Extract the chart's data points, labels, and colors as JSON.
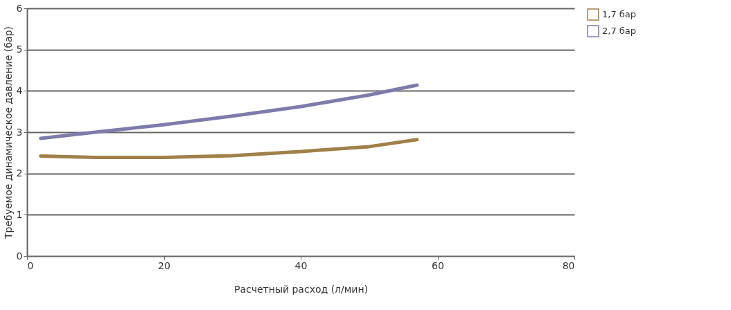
{
  "chart_data": {
    "type": "line",
    "xlabel": "Расчетный расход (л/мин)",
    "ylabel": "Требуемое динамическое давление (бар)",
    "xlim": [
      0,
      80
    ],
    "xticks": [
      0,
      20,
      40,
      60,
      80
    ],
    "ylim": [
      0,
      6
    ],
    "yticks": [
      0,
      1,
      2,
      3,
      4,
      5,
      6
    ],
    "grid": "y",
    "legend": "right",
    "line_style": "solid",
    "marker": "none",
    "series": [
      {
        "name": "1,7 бар",
        "color": "#a08049",
        "x": [
          2,
          10,
          20,
          30,
          40,
          50,
          57
        ],
        "values": [
          2.42,
          2.39,
          2.39,
          2.43,
          2.53,
          2.65,
          2.82
        ]
      },
      {
        "name": "2,7 бар",
        "color": "#7e7bab",
        "x": [
          2,
          10,
          20,
          30,
          40,
          50,
          57
        ],
        "values": [
          2.85,
          3.0,
          3.18,
          3.39,
          3.62,
          3.9,
          4.14
        ]
      }
    ]
  }
}
